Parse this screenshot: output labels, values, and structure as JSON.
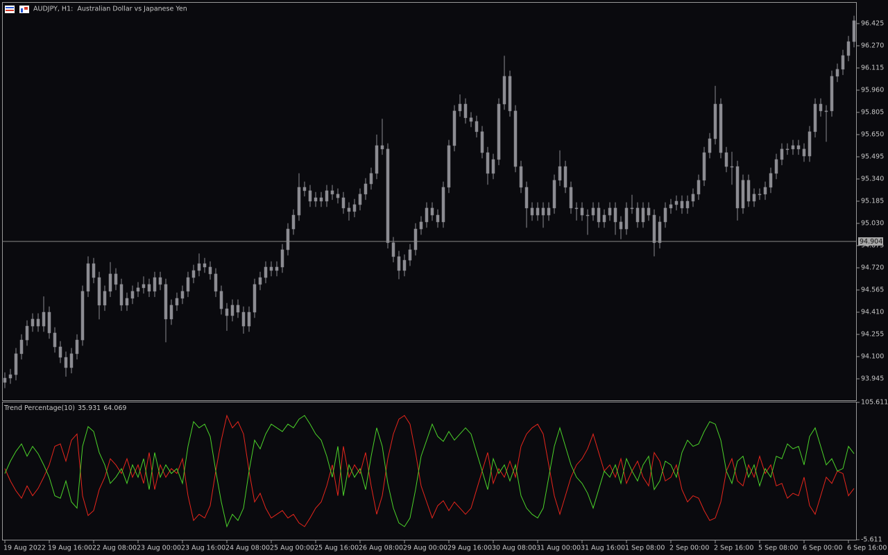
{
  "chart_data": [
    {
      "type": "candlestick",
      "title": "AUDJPY, H1:  Australian Dollar vs Japanese Yen",
      "color": "#8c8c92",
      "current_price": 94.904,
      "categories": [
        "19 Aug 2022",
        null,
        null,
        null,
        null,
        null,
        null,
        null,
        "19 Aug 16:00",
        null,
        null,
        null,
        null,
        null,
        null,
        null,
        "22 Aug 08:00",
        null,
        null,
        null,
        null,
        null,
        null,
        null,
        "23 Aug 00:00",
        null,
        null,
        null,
        null,
        null,
        null,
        null,
        "23 Aug 16:00",
        null,
        null,
        null,
        null,
        null,
        null,
        null,
        "24 Aug 08:00",
        null,
        null,
        null,
        null,
        null,
        null,
        null,
        "25 Aug 00:00",
        null,
        null,
        null,
        null,
        null,
        null,
        null,
        "25 Aug 16:00",
        null,
        null,
        null,
        null,
        null,
        null,
        null,
        "26 Aug 08:00",
        null,
        null,
        null,
        null,
        null,
        null,
        null,
        "29 Aug 00:00",
        null,
        null,
        null,
        null,
        null,
        null,
        null,
        "29 Aug 16:00",
        null,
        null,
        null,
        null,
        null,
        null,
        null,
        "30 Aug 08:00",
        null,
        null,
        null,
        null,
        null,
        null,
        null,
        "31 Aug 00:00",
        null,
        null,
        null,
        null,
        null,
        null,
        null,
        "31 Aug 16:00",
        null,
        null,
        null,
        null,
        null,
        null,
        null,
        "1 Sep 08:00",
        null,
        null,
        null,
        null,
        null,
        null,
        null,
        "2 Sep 00:00",
        null,
        null,
        null,
        null,
        null,
        null,
        null,
        "2 Sep 16:00",
        null,
        null,
        null,
        null,
        null,
        null,
        null,
        "5 Sep 08:00",
        null,
        null,
        null,
        null,
        null,
        null,
        null,
        "6 Sep 00:00",
        null,
        null,
        null,
        null,
        null,
        null,
        null,
        "6 Sep 16:00",
        null
      ],
      "open": [
        93.92,
        93.95,
        93.974,
        94.12,
        94.216,
        94.313,
        94.362,
        94.313,
        94.41,
        94.265,
        94.168,
        94.095,
        94.023,
        94.12,
        94.216,
        94.556,
        94.749,
        94.652,
        94.459,
        94.556,
        94.677,
        94.604,
        94.459,
        94.507,
        94.556,
        94.58,
        94.604,
        94.556,
        94.652,
        94.604,
        94.362,
        94.459,
        94.507,
        94.556,
        94.652,
        94.701,
        94.749,
        94.725,
        94.677,
        94.556,
        94.434,
        94.386,
        94.459,
        94.41,
        94.313,
        94.41,
        94.604,
        94.652,
        94.725,
        94.701,
        94.725,
        94.846,
        94.991,
        95.088,
        95.282,
        95.258,
        95.185,
        95.209,
        95.185,
        95.258,
        95.234,
        95.209,
        95.137,
        95.113,
        95.161,
        95.234,
        95.306,
        95.379,
        95.573,
        95.549,
        94.895,
        94.798,
        94.701,
        94.773,
        94.846,
        94.991,
        95.04,
        95.137,
        95.088,
        95.04,
        95.282,
        95.573,
        95.815,
        95.863,
        95.767,
        95.742,
        95.67,
        95.524,
        95.379,
        95.476,
        95.863,
        96.057,
        95.815,
        95.427,
        95.282,
        95.137,
        95.088,
        95.137,
        95.088,
        95.137,
        95.331,
        95.427,
        95.282,
        95.137,
        95.137,
        95.088,
        95.088,
        95.137,
        95.04,
        95.088,
        95.137,
        95.04,
        94.991,
        95.137,
        95.137,
        95.04,
        95.137,
        95.088,
        94.895,
        95.04,
        95.137,
        95.161,
        95.185,
        95.137,
        95.185,
        95.234,
        95.331,
        95.524,
        95.621,
        95.863,
        95.524,
        95.427,
        95.427,
        95.137,
        95.331,
        95.185,
        95.234,
        95.234,
        95.282,
        95.379,
        95.476,
        95.549,
        95.549,
        95.573,
        95.549,
        95.5,
        95.67,
        95.863,
        95.815,
        95.815,
        96.057,
        96.106,
        96.202,
        96.299
      ],
      "high": [
        93.99,
        94.014,
        94.16,
        94.256,
        94.353,
        94.402,
        94.402,
        94.52,
        94.45,
        94.305,
        94.208,
        94.135,
        94.16,
        94.256,
        94.596,
        94.8,
        94.789,
        94.692,
        94.596,
        94.76,
        94.717,
        94.644,
        94.547,
        94.596,
        94.62,
        94.66,
        94.644,
        94.692,
        94.692,
        94.644,
        94.499,
        94.547,
        94.596,
        94.692,
        94.741,
        94.82,
        94.789,
        94.765,
        94.717,
        94.596,
        94.474,
        94.499,
        94.499,
        94.45,
        94.45,
        94.644,
        94.692,
        94.765,
        94.765,
        94.765,
        94.886,
        95.031,
        95.128,
        95.38,
        95.322,
        95.298,
        95.249,
        95.249,
        95.298,
        95.298,
        95.274,
        95.249,
        95.177,
        95.201,
        95.274,
        95.346,
        95.419,
        95.65,
        95.76,
        95.589,
        94.935,
        94.838,
        94.813,
        94.886,
        95.031,
        95.08,
        95.177,
        95.177,
        95.128,
        95.322,
        95.613,
        95.855,
        95.93,
        95.903,
        95.807,
        95.782,
        95.71,
        95.564,
        95.516,
        95.903,
        96.2,
        96.097,
        95.855,
        95.467,
        95.322,
        95.177,
        95.177,
        95.177,
        95.177,
        95.371,
        95.54,
        95.467,
        95.322,
        95.177,
        95.177,
        95.128,
        95.177,
        95.177,
        95.128,
        95.177,
        95.177,
        95.08,
        95.177,
        95.23,
        95.177,
        95.177,
        95.177,
        95.128,
        95.08,
        95.177,
        95.201,
        95.225,
        95.225,
        95.225,
        95.274,
        95.371,
        95.564,
        95.661,
        95.99,
        95.903,
        95.564,
        95.53,
        95.467,
        95.371,
        95.371,
        95.274,
        95.274,
        95.322,
        95.419,
        95.516,
        95.589,
        95.589,
        95.613,
        95.613,
        95.589,
        95.71,
        95.903,
        95.903,
        95.855,
        96.097,
        96.146,
        96.242,
        96.339,
        96.48
      ],
      "low": [
        93.88,
        93.91,
        93.934,
        94.08,
        94.176,
        94.273,
        94.273,
        94.273,
        94.225,
        94.128,
        94.055,
        93.96,
        93.983,
        94.08,
        94.176,
        94.516,
        94.612,
        94.36,
        94.419,
        94.516,
        94.564,
        94.419,
        94.419,
        94.467,
        94.516,
        94.54,
        94.516,
        94.516,
        94.564,
        94.2,
        94.322,
        94.419,
        94.467,
        94.516,
        94.612,
        94.661,
        94.685,
        94.637,
        94.516,
        94.394,
        94.28,
        94.346,
        94.37,
        94.26,
        94.273,
        94.37,
        94.564,
        94.612,
        94.661,
        94.661,
        94.685,
        94.806,
        94.951,
        95.048,
        95.218,
        95.145,
        95.145,
        95.145,
        95.145,
        95.194,
        95.169,
        95.097,
        95.05,
        95.073,
        95.121,
        95.194,
        95.266,
        95.339,
        95.509,
        94.855,
        94.758,
        94.64,
        94.661,
        94.733,
        94.806,
        94.951,
        95.0,
        95.048,
        95.0,
        95.0,
        95.242,
        95.533,
        95.775,
        95.727,
        95.702,
        95.63,
        95.484,
        95.3,
        95.339,
        95.436,
        95.823,
        95.775,
        95.387,
        95.242,
        95.0,
        95.048,
        95.048,
        95.0,
        95.048,
        95.097,
        95.291,
        95.242,
        95.097,
        95.05,
        95.048,
        94.95,
        95.048,
        95.0,
        95.0,
        95.048,
        94.95,
        94.92,
        94.951,
        95.097,
        95.0,
        95.0,
        95.048,
        94.8,
        94.855,
        95.0,
        95.097,
        95.121,
        95.097,
        95.097,
        95.145,
        95.194,
        95.291,
        95.484,
        95.581,
        95.484,
        95.387,
        95.3,
        95.05,
        95.097,
        95.145,
        95.145,
        95.194,
        95.194,
        95.242,
        95.339,
        95.436,
        95.509,
        95.509,
        95.509,
        95.46,
        95.46,
        95.63,
        95.775,
        95.6,
        95.775,
        96.017,
        96.066,
        96.162,
        96.259
      ],
      "close": [
        93.95,
        93.974,
        94.12,
        94.216,
        94.313,
        94.362,
        94.313,
        94.41,
        94.265,
        94.168,
        94.095,
        94.023,
        94.12,
        94.216,
        94.556,
        94.749,
        94.652,
        94.459,
        94.556,
        94.677,
        94.604,
        94.459,
        94.507,
        94.556,
        94.58,
        94.604,
        94.556,
        94.652,
        94.604,
        94.362,
        94.459,
        94.507,
        94.556,
        94.652,
        94.701,
        94.749,
        94.725,
        94.677,
        94.556,
        94.434,
        94.386,
        94.459,
        94.41,
        94.313,
        94.41,
        94.604,
        94.652,
        94.725,
        94.701,
        94.725,
        94.846,
        94.991,
        95.088,
        95.282,
        95.258,
        95.185,
        95.209,
        95.185,
        95.258,
        95.234,
        95.209,
        95.137,
        95.113,
        95.161,
        95.234,
        95.306,
        95.379,
        95.573,
        95.549,
        94.895,
        94.798,
        94.701,
        94.773,
        94.846,
        94.991,
        95.04,
        95.137,
        95.088,
        95.04,
        95.282,
        95.573,
        95.815,
        95.863,
        95.767,
        95.742,
        95.67,
        95.524,
        95.379,
        95.476,
        95.863,
        96.057,
        95.815,
        95.427,
        95.282,
        95.137,
        95.088,
        95.137,
        95.088,
        95.137,
        95.331,
        95.427,
        95.282,
        95.137,
        95.137,
        95.088,
        95.088,
        95.137,
        95.04,
        95.088,
        95.137,
        95.04,
        94.991,
        95.137,
        95.137,
        95.04,
        95.137,
        95.088,
        94.895,
        95.04,
        95.137,
        95.161,
        95.185,
        95.137,
        95.185,
        95.234,
        95.331,
        95.524,
        95.621,
        95.863,
        95.524,
        95.427,
        95.427,
        95.137,
        95.331,
        95.185,
        95.234,
        95.234,
        95.282,
        95.379,
        95.476,
        95.549,
        95.549,
        95.573,
        95.549,
        95.5,
        95.67,
        95.863,
        95.815,
        95.815,
        96.057,
        96.106,
        96.202,
        96.299,
        96.445
      ],
      "ylim": [
        93.795,
        96.575
      ],
      "yticks": [
        93.945,
        {
          "value": 94.1,
          "label": "94.100"
        },
        94.255,
        {
          "value": 94.41,
          "label": "94.410"
        },
        94.565,
        {
          "value": 94.72,
          "label": "94.720"
        },
        94.875,
        {
          "value": 95.03,
          "label": "95.030"
        },
        95.185,
        {
          "value": 95.34,
          "label": "95.340"
        },
        95.495,
        {
          "value": 95.65,
          "label": "95.650"
        },
        95.805,
        {
          "value": 95.96,
          "label": "95.960"
        },
        96.115,
        {
          "value": 96.27,
          "label": "96.270"
        },
        96.425
      ]
    },
    {
      "type": "line",
      "title": "Trend Percentage(10)",
      "series": [
        {
          "color": "#e8261c",
          "values": [
            52,
            42,
            34,
            28,
            38,
            30,
            36,
            45,
            55,
            70,
            72,
            58,
            75,
            80,
            30,
            14,
            18,
            35,
            45,
            60,
            55,
            48,
            60,
            45,
            55,
            40,
            65,
            35,
            55,
            45,
            52,
            48,
            60,
            30,
            10,
            15,
            12,
            22,
            50,
            75,
            95,
            85,
            90,
            80,
            50,
            25,
            32,
            20,
            12,
            15,
            18,
            12,
            15,
            8,
            5,
            12,
            20,
            25,
            38,
            55,
            30,
            70,
            45,
            55,
            48,
            65,
            38,
            15,
            30,
            60,
            80,
            92,
            95,
            88,
            65,
            38,
            25,
            12,
            22,
            26,
            18,
            25,
            20,
            15,
            20,
            35,
            50,
            65,
            40,
            52,
            45,
            58,
            45,
            70,
            80,
            85,
            88,
            80,
            55,
            30,
            15,
            30,
            45,
            55,
            60,
            68,
            80,
            65,
            50,
            55,
            45,
            60,
            40,
            50,
            58,
            45,
            38,
            65,
            58,
            42,
            45,
            55,
            35,
            25,
            30,
            28,
            18,
            10,
            12,
            25,
            50,
            60,
            42,
            38,
            55,
            45,
            62,
            48,
            55,
            38,
            40,
            28,
            32,
            30,
            45,
            22,
            15,
            30,
            45,
            40,
            50,
            48,
            30,
            35.931
          ]
        },
        {
          "color": "#4cd42a",
          "values": [
            48,
            58,
            66,
            72,
            62,
            70,
            64,
            55,
            45,
            30,
            28,
            42,
            25,
            20,
            70,
            86,
            82,
            65,
            55,
            40,
            45,
            52,
            40,
            55,
            45,
            60,
            35,
            65,
            45,
            55,
            48,
            52,
            40,
            70,
            90,
            85,
            88,
            78,
            50,
            25,
            5,
            15,
            10,
            20,
            50,
            75,
            68,
            80,
            88,
            85,
            82,
            88,
            85,
            92,
            95,
            88,
            80,
            75,
            62,
            45,
            70,
            30,
            55,
            45,
            52,
            35,
            62,
            85,
            70,
            40,
            20,
            8,
            5,
            12,
            35,
            62,
            75,
            88,
            78,
            74,
            82,
            75,
            80,
            85,
            80,
            65,
            50,
            35,
            60,
            48,
            55,
            42,
            55,
            30,
            20,
            15,
            12,
            20,
            45,
            70,
            85,
            70,
            55,
            45,
            40,
            32,
            20,
            35,
            50,
            45,
            55,
            40,
            60,
            50,
            42,
            55,
            62,
            35,
            42,
            58,
            55,
            45,
            65,
            75,
            70,
            72,
            82,
            90,
            88,
            75,
            50,
            40,
            58,
            62,
            45,
            55,
            38,
            52,
            45,
            62,
            60,
            72,
            68,
            70,
            55,
            78,
            85,
            70,
            55,
            60,
            50,
            52,
            70,
            64.069
          ]
        }
      ],
      "ylim": [
        -5.611,
        105.611
      ],
      "yticks": [
        -5.611,
        105.611
      ]
    }
  ]
}
